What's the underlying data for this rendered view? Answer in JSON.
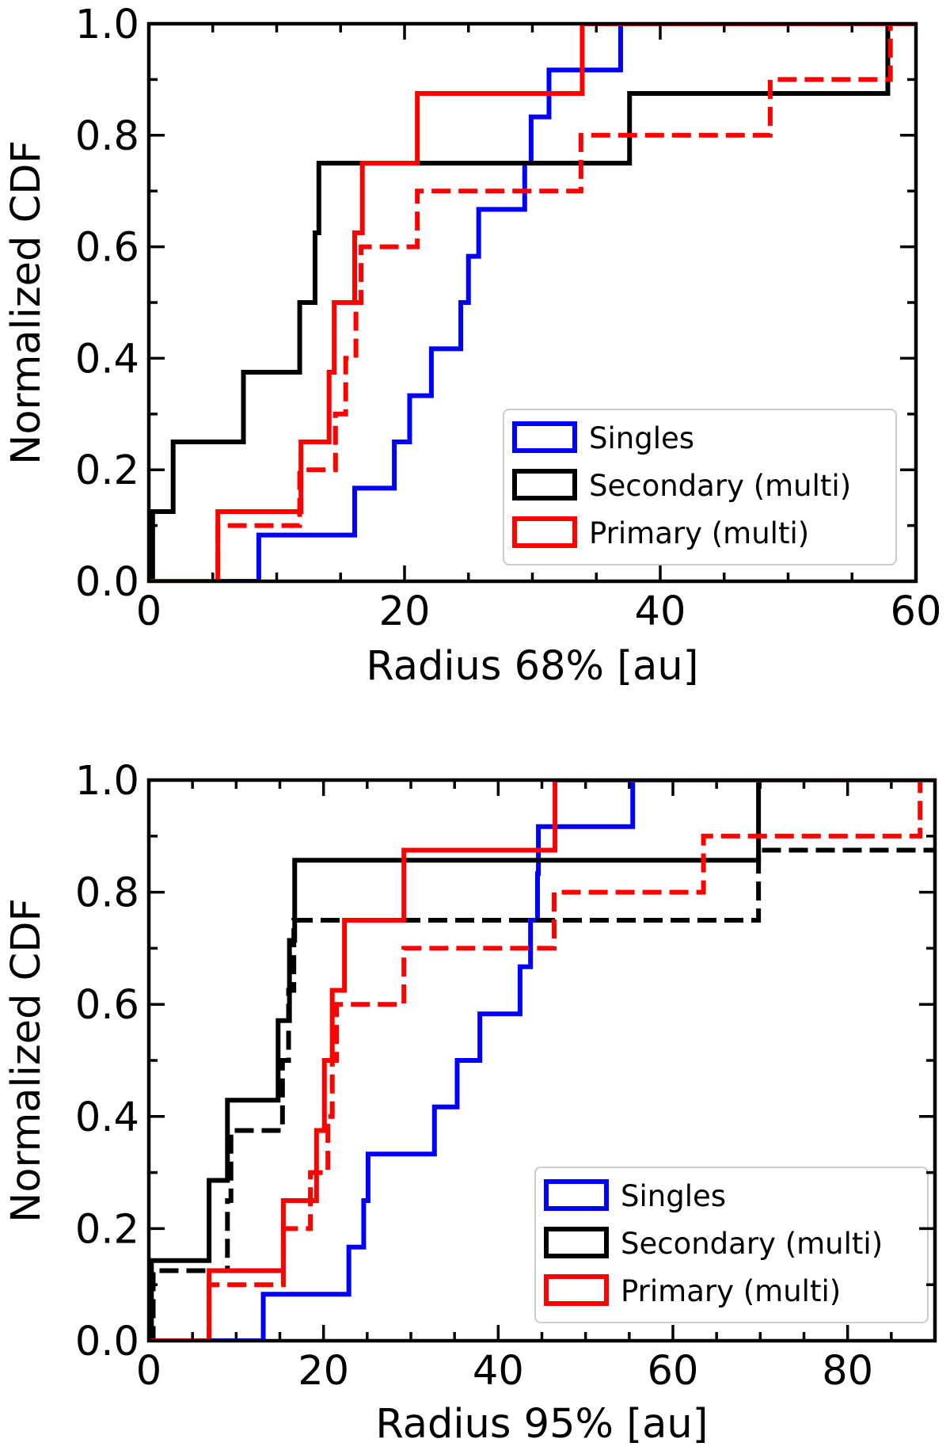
{
  "chart_data": [
    {
      "type": "step",
      "id": "r68",
      "xlabel": "Radius 68% [au]",
      "ylabel": "Normalized CDF",
      "xlim": [
        0,
        60
      ],
      "ylim": [
        0,
        1
      ],
      "xticks": [
        0,
        20,
        40,
        60
      ],
      "xtick_labels": [
        "0",
        "20",
        "40",
        "60"
      ],
      "yticks": [
        0.0,
        0.2,
        0.4,
        0.6,
        0.8,
        1.0
      ],
      "ytick_labels": [
        "0.0",
        "0.2",
        "0.4",
        "0.6",
        "0.8",
        "1.0"
      ],
      "legend": [
        {
          "label": "Singles",
          "color": "#0000ff"
        },
        {
          "label": "Secondary (multi)",
          "color": "#000000"
        },
        {
          "label": "Primary (multi)",
          "color": "#ff0000"
        }
      ],
      "series": [
        {
          "name": "Singles",
          "color": "#0000ff",
          "dash": "solid",
          "steps": [
            [
              0.0,
              0.0
            ],
            [
              8.6,
              0.083
            ],
            [
              16.1,
              0.167
            ],
            [
              19.2,
              0.25
            ],
            [
              20.4,
              0.333
            ],
            [
              22.1,
              0.417
            ],
            [
              24.4,
              0.5
            ],
            [
              25.0,
              0.583
            ],
            [
              25.8,
              0.667
            ],
            [
              29.4,
              0.75
            ],
            [
              29.9,
              0.833
            ],
            [
              31.3,
              0.917
            ],
            [
              36.9,
              1.0
            ],
            [
              60,
              1.0
            ]
          ]
        },
        {
          "name": "Secondary (multi)",
          "color": "#000000",
          "dash": "solid",
          "steps": [
            [
              0.0,
              0.0
            ],
            [
              0.3,
              0.125
            ],
            [
              1.9,
              0.25
            ],
            [
              7.4,
              0.375
            ],
            [
              11.8,
              0.5
            ],
            [
              13.0,
              0.625
            ],
            [
              13.3,
              0.75
            ],
            [
              37.6,
              0.875
            ],
            [
              57.8,
              1.0
            ],
            [
              60,
              1.0
            ]
          ]
        },
        {
          "name": "Primary (multi)",
          "color": "#ff0000",
          "dash": "solid",
          "steps": [
            [
              0.0,
              0.0
            ],
            [
              5.4,
              0.125
            ],
            [
              11.9,
              0.25
            ],
            [
              14.1,
              0.375
            ],
            [
              14.5,
              0.5
            ],
            [
              16.1,
              0.625
            ],
            [
              16.7,
              0.75
            ],
            [
              21.0,
              0.875
            ],
            [
              33.9,
              1.0
            ],
            [
              60,
              1.0
            ]
          ]
        },
        {
          "name": "Primary (multi)",
          "color": "#ff0000",
          "dash": "dashed",
          "steps": [
            [
              0.0,
              0.0
            ],
            [
              5.4,
              0.1
            ],
            [
              11.8,
              0.2
            ],
            [
              14.6,
              0.3
            ],
            [
              15.4,
              0.4
            ],
            [
              16.2,
              0.5
            ],
            [
              16.6,
              0.6
            ],
            [
              21.0,
              0.7
            ],
            [
              33.8,
              0.8
            ],
            [
              48.6,
              0.9
            ],
            [
              58.0,
              1.0
            ],
            [
              60,
              1.0
            ]
          ]
        }
      ]
    },
    {
      "type": "step",
      "id": "r95",
      "xlabel": "Radius 95% [au]",
      "ylabel": "Normalized CDF",
      "xlim": [
        0,
        90
      ],
      "ylim": [
        0,
        1
      ],
      "xticks": [
        0,
        20,
        40,
        60,
        80
      ],
      "xtick_labels": [
        "0",
        "20",
        "40",
        "60",
        "80"
      ],
      "yticks": [
        0.0,
        0.2,
        0.4,
        0.6,
        0.8,
        1.0
      ],
      "ytick_labels": [
        "0.0",
        "0.2",
        "0.4",
        "0.6",
        "0.8",
        "1.0"
      ],
      "legend": [
        {
          "label": "Singles",
          "color": "#0000ff"
        },
        {
          "label": "Secondary (multi)",
          "color": "#000000"
        },
        {
          "label": "Primary (multi)",
          "color": "#ff0000"
        }
      ],
      "series": [
        {
          "name": "Singles",
          "color": "#0000ff",
          "dash": "solid",
          "steps": [
            [
              0.0,
              0.0
            ],
            [
              13.1,
              0.083
            ],
            [
              22.9,
              0.167
            ],
            [
              24.6,
              0.25
            ],
            [
              25.1,
              0.333
            ],
            [
              32.7,
              0.417
            ],
            [
              35.3,
              0.5
            ],
            [
              37.9,
              0.583
            ],
            [
              42.5,
              0.667
            ],
            [
              43.7,
              0.75
            ],
            [
              44.5,
              0.833
            ],
            [
              44.6,
              0.917
            ],
            [
              55.4,
              1.0
            ],
            [
              90,
              1.0
            ]
          ]
        },
        {
          "name": "Secondary (multi)",
          "color": "#000000",
          "dash": "solid",
          "steps": [
            [
              0.0,
              0.0
            ],
            [
              0.3,
              0.143
            ],
            [
              6.9,
              0.286
            ],
            [
              9.0,
              0.429
            ],
            [
              14.8,
              0.571
            ],
            [
              16.1,
              0.714
            ],
            [
              16.7,
              0.857
            ],
            [
              69.8,
              1.0
            ],
            [
              90,
              1.0
            ]
          ]
        },
        {
          "name": "Secondary (multi)",
          "color": "#000000",
          "dash": "dashed",
          "steps": [
            [
              0.0,
              0.0
            ],
            [
              0.5,
              0.125
            ],
            [
              9.0,
              0.25
            ],
            [
              9.4,
              0.375
            ],
            [
              15.3,
              0.5
            ],
            [
              16.0,
              0.625
            ],
            [
              16.6,
              0.75
            ],
            [
              69.8,
              0.875
            ],
            [
              90,
              0.875
            ]
          ]
        },
        {
          "name": "Primary (multi)",
          "color": "#ff0000",
          "dash": "solid",
          "steps": [
            [
              0.0,
              0.0
            ],
            [
              6.9,
              0.125
            ],
            [
              15.4,
              0.25
            ],
            [
              19.2,
              0.375
            ],
            [
              20.1,
              0.5
            ],
            [
              21.0,
              0.625
            ],
            [
              22.4,
              0.75
            ],
            [
              29.2,
              0.875
            ],
            [
              46.5,
              1.0
            ],
            [
              90,
              1.0
            ]
          ]
        },
        {
          "name": "Primary (multi)",
          "color": "#ff0000",
          "dash": "dashed",
          "steps": [
            [
              0.0,
              0.0
            ],
            [
              6.9,
              0.1
            ],
            [
              15.4,
              0.2
            ],
            [
              18.5,
              0.3
            ],
            [
              20.5,
              0.4
            ],
            [
              21.0,
              0.5
            ],
            [
              21.5,
              0.6
            ],
            [
              29.2,
              0.7
            ],
            [
              46.4,
              0.8
            ],
            [
              63.5,
              0.9
            ],
            [
              88.3,
              1.0
            ],
            [
              90,
              1.0
            ]
          ]
        }
      ]
    }
  ]
}
